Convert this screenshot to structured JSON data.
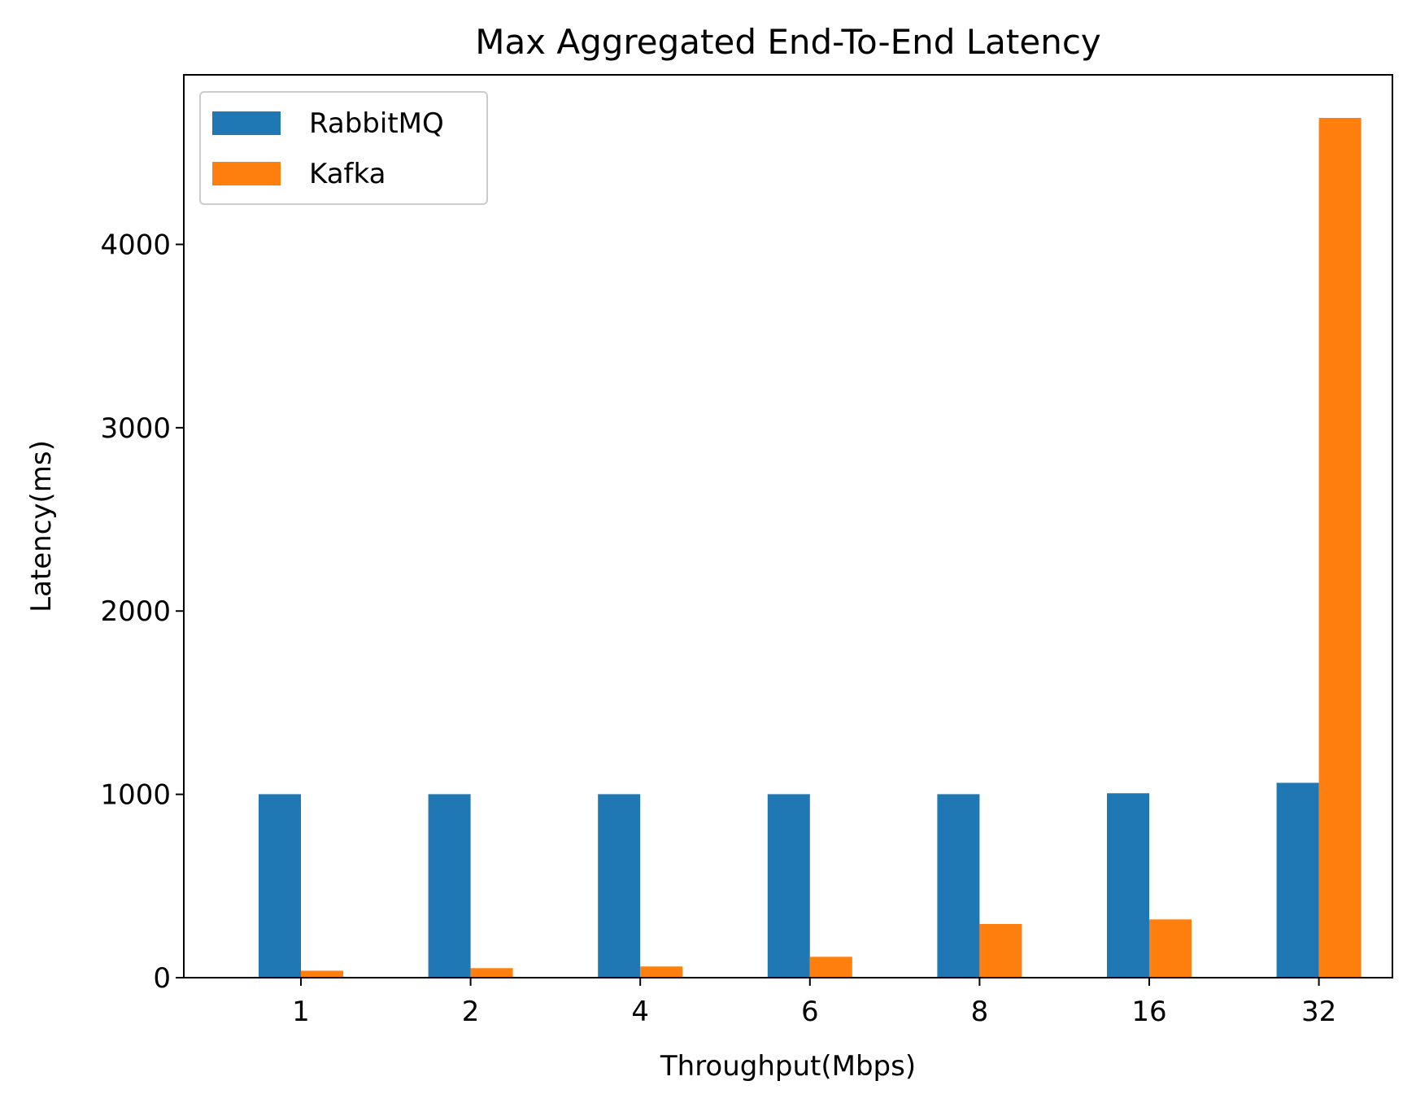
{
  "chart_data": {
    "type": "bar",
    "title": "Max Aggregated End-To-End Latency",
    "xlabel": "Throughput(Mbps)",
    "ylabel": "Latency(ms)",
    "categories": [
      "1",
      "2",
      "4",
      "6",
      "8",
      "16",
      "32"
    ],
    "series": [
      {
        "name": "RabbitMQ",
        "color": "#1f77b4",
        "values": [
          1001,
          1001,
          1001,
          1001,
          1001,
          1006,
          1063
        ]
      },
      {
        "name": "Kafka",
        "color": "#ff7f0e",
        "values": [
          38,
          52,
          61,
          114,
          293,
          318,
          4690
        ]
      }
    ],
    "ylim": [
      0,
      4925
    ],
    "yticks": [
      0,
      1000,
      2000,
      3000,
      4000
    ],
    "legend_position": "upper left",
    "grid": false
  }
}
